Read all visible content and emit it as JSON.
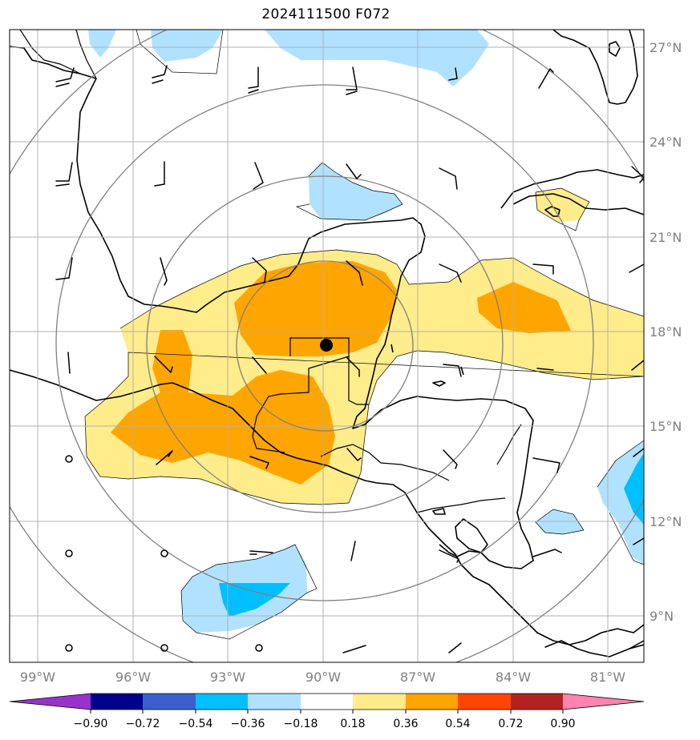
{
  "title": "2024111500 F072",
  "map": {
    "lon_range": [
      -100,
      -80
    ],
    "lat_range": [
      7.5,
      27.5
    ],
    "lon_labels": [
      "99°W",
      "96°W",
      "93°W",
      "90°W",
      "87°W",
      "84°W",
      "81°W"
    ],
    "lat_labels": [
      "27°N",
      "24°N",
      "21°N",
      "18°N",
      "15°N",
      "12°N",
      "9°N"
    ],
    "storm_center": {
      "lon": -89.9,
      "lat": 17.5
    },
    "range_rings": 4,
    "gridlines": true
  },
  "colorbar": {
    "tick_labels": [
      "−0.90",
      "−0.72",
      "−0.54",
      "−0.36",
      "−0.18",
      "0.18",
      "0.36",
      "0.54",
      "0.72",
      "0.90"
    ],
    "colors": [
      "#9932cc",
      "#00008b",
      "#3a5fcd",
      "#00bfff",
      "#b0e2ff",
      "#ffffff",
      "#ffec8b",
      "#ffa500",
      "#ff4500",
      "#b22222",
      "#ff83b0"
    ]
  }
}
